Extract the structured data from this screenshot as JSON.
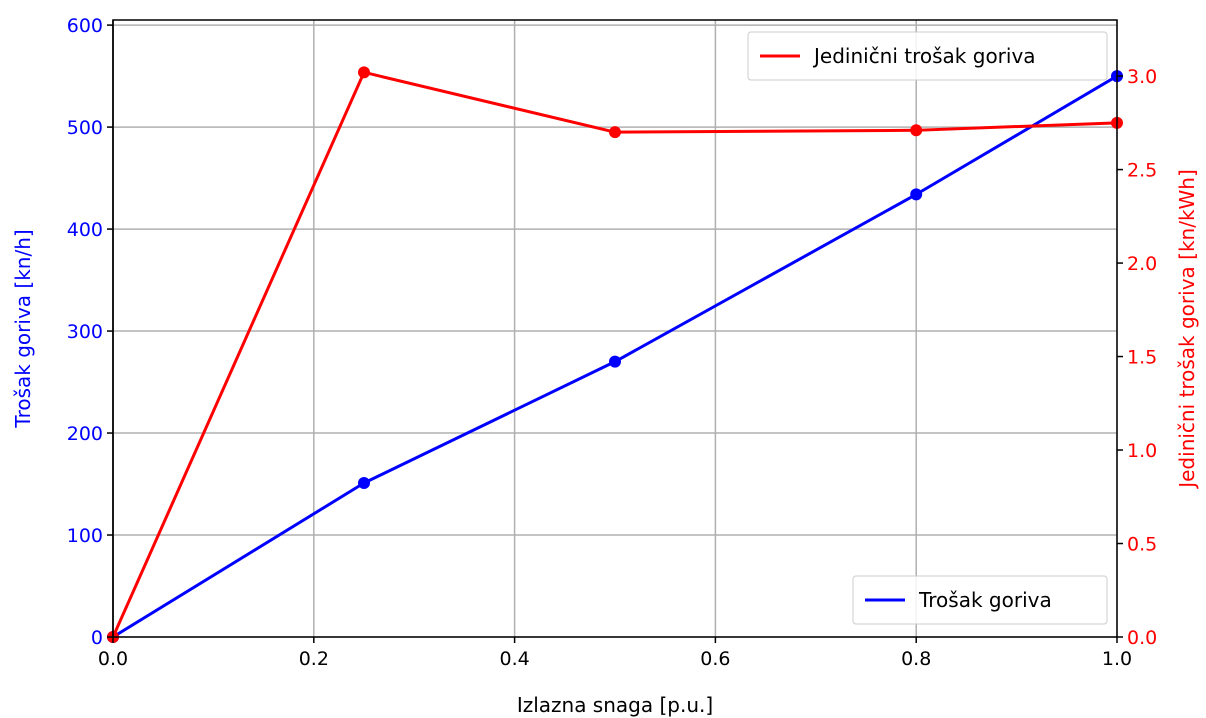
{
  "chart_data": {
    "type": "line",
    "xlabel": "Izlazna snaga [p.u.]",
    "xlim": [
      0,
      1
    ],
    "x_ticks": [
      "0.0",
      "0.2",
      "0.4",
      "0.6",
      "0.8",
      "1.0"
    ],
    "x_tick_values": [
      0,
      0.2,
      0.4,
      0.6,
      0.8,
      1.0
    ],
    "left_axis": {
      "label": "Trošak goriva [kn/h]",
      "color": "#0000ff",
      "ylim": [
        0,
        605
      ],
      "ticks": [
        "0",
        "100",
        "200",
        "300",
        "400",
        "500",
        "600"
      ],
      "tick_values": [
        0,
        100,
        200,
        300,
        400,
        500,
        600
      ]
    },
    "right_axis": {
      "label": "Jedinični trošak goriva [kn/kWh]",
      "color": "#ff0000",
      "ylim": [
        0,
        3.3
      ],
      "ticks": [
        "0.0",
        "0.5",
        "1.0",
        "1.5",
        "2.0",
        "2.5",
        "3.0"
      ],
      "tick_values": [
        0,
        0.5,
        1.0,
        1.5,
        2.0,
        2.5,
        3.0
      ]
    },
    "series": [
      {
        "name": "Trošak goriva",
        "axis": "left",
        "color": "#0000ff",
        "x": [
          0,
          0.25,
          0.5,
          0.8,
          1.0
        ],
        "y": [
          0,
          151,
          270,
          434,
          550
        ]
      },
      {
        "name": "Jedinični trošak goriva",
        "axis": "right",
        "color": "#ff0000",
        "x": [
          0,
          0.25,
          0.5,
          0.8,
          1.0
        ],
        "y": [
          0,
          3.02,
          2.7,
          2.71,
          2.75
        ]
      }
    ],
    "grid": true,
    "legends": [
      {
        "series": "Jedinični trošak goriva",
        "placement": "top-right"
      },
      {
        "series": "Trošak goriva",
        "placement": "bottom-right"
      }
    ]
  }
}
